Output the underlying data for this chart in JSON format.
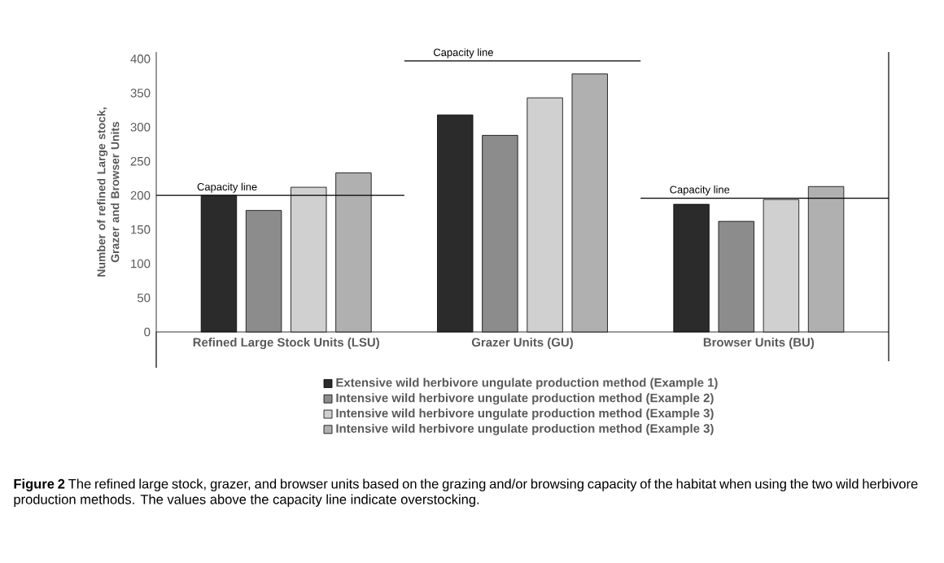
{
  "chart_data": {
    "type": "bar",
    "ylabel": "Number of refined Large stock, Grazer and Browser Units",
    "categories": [
      "Refined Large Stock Units (LSU)",
      "Grazer Units (GU)",
      "Browser Units (BU)"
    ],
    "series": [
      {
        "name": "Extensive wild herbivore ungulate production method (Example 1)",
        "color": "#2b2b2b",
        "values": [
          200,
          318,
          187
        ]
      },
      {
        "name": "Intensive wild herbivore ungulate production method (Example 2)",
        "color": "#8c8c8c",
        "values": [
          178,
          288,
          162
        ]
      },
      {
        "name": "Intensive wild herbivore ungulate production method (Example 3)",
        "color": "#d0d0d0",
        "values": [
          212,
          343,
          194
        ]
      },
      {
        "name": "Intensive wild herbivore ungulate production method (Example 3)",
        "color": "#b0b0b0",
        "values": [
          233,
          378,
          213
        ]
      }
    ],
    "ylim": [
      0,
      410
    ],
    "yticks": [
      0,
      50,
      100,
      150,
      200,
      250,
      300,
      350,
      400
    ],
    "grid": false,
    "legend": "bottom",
    "ref_lines": [
      {
        "axis": "y",
        "value": 200,
        "label": "Capacity line"
      },
      {
        "axis": "y",
        "value": 397,
        "label": "Capacity line"
      },
      {
        "axis": "y",
        "value": 196,
        "label": "Capacity line"
      }
    ],
    "annotations": [
      "**Figure 2** The refined large stock, grazer, and browser units based on the grazing and/or browsing capacity of the habitat when using the two wild herbivore production methods. The values above the capacity line indicate overstocking."
    ]
  }
}
